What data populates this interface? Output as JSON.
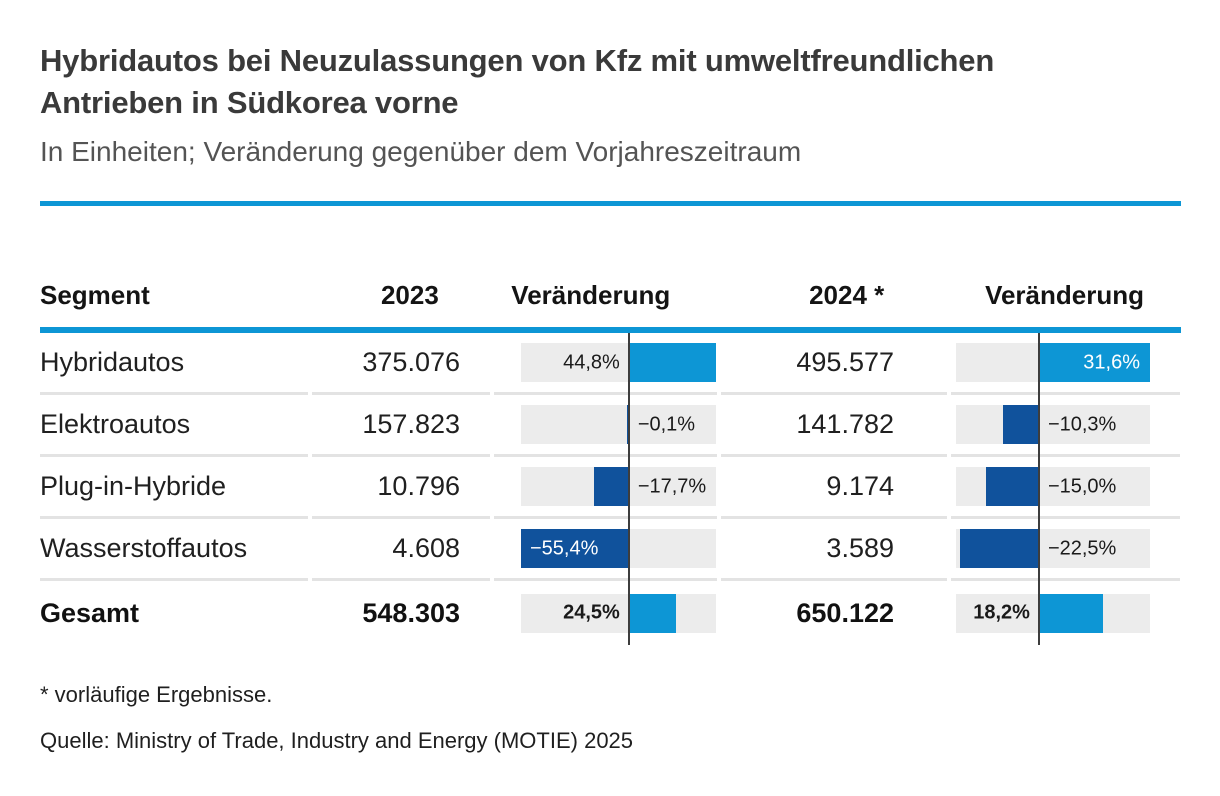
{
  "title_lines": [
    "Hybridautos bei Neuzulassungen von Kfz mit umweltfreundlichen",
    "Antrieben in Südkorea vorne"
  ],
  "subtitle": "In Einheiten; Veränderung gegenüber dem Vorjahreszeitraum",
  "footnote": "* vorläufige Ergebnisse.",
  "source": "Quelle: Ministry of Trade, Industry and Energy (MOTIE) 2025",
  "colors": {
    "accent_blue": "#0d96d5",
    "positive_bar": "#0d96d5",
    "negative_bar": "#10529c",
    "range_block_gray": "#ececec",
    "axis_line": "#3d3d3d",
    "title_text": "#3a3a3a",
    "subtitle_text": "#545454"
  },
  "table": {
    "columns": [
      "Segment",
      "2023",
      "Veränderung",
      "2024 *",
      "Veränderung"
    ],
    "rows": [
      {
        "segment": "Hybridautos",
        "v2023": "375.076",
        "c2023": {
          "label": "44,8%",
          "value": 44.8,
          "label_inside": false
        },
        "v2024": "495.577",
        "c2024": {
          "label": "31,6%",
          "value": 31.6,
          "label_inside": true
        },
        "bold": false
      },
      {
        "segment": "Elektroautos",
        "v2023": "157.823",
        "c2023": {
          "label": "−0,1%",
          "value": -0.1,
          "label_inside": false
        },
        "v2024": "141.782",
        "c2024": {
          "label": "−10,3%",
          "value": -10.3,
          "label_inside": false
        },
        "bold": false
      },
      {
        "segment": "Plug-in-Hybride",
        "v2023": "10.796",
        "c2023": {
          "label": "−17,7%",
          "value": -17.7,
          "label_inside": false
        },
        "v2024": "9.174",
        "c2024": {
          "label": "−15,0%",
          "value": -15.0,
          "label_inside": false
        },
        "bold": false
      },
      {
        "segment": "Wasserstoffautos",
        "v2023": "4.608",
        "c2023": {
          "label": "−55,4%",
          "value": -55.4,
          "label_inside": true
        },
        "v2024": "3.589",
        "c2024": {
          "label": "−22,5%",
          "value": -22.5,
          "label_inside": false
        },
        "bold": false
      },
      {
        "segment": "Gesamt",
        "v2023": "548.303",
        "c2023": {
          "label": "24,5%",
          "value": 24.5,
          "label_inside": false
        },
        "v2024": "650.122",
        "c2024": {
          "label": "18,2%",
          "value": 18.2,
          "label_inside": false
        },
        "bold": true
      }
    ]
  },
  "chart_data": {
    "type": "table",
    "title": "Hybridautos bei Neuzulassungen von Kfz mit umweltfreundlichen Antrieben in Südkorea vorne",
    "subtitle": "In Einheiten; Veränderung gegenüber dem Vorjahreszeitraum",
    "columns": [
      "Segment",
      "2023",
      "Veränderung",
      "2024 *",
      "Veränderung"
    ],
    "categories": [
      "Hybridautos",
      "Elektroautos",
      "Plug-in-Hybride",
      "Wasserstoffautos",
      "Gesamt"
    ],
    "series": [
      {
        "name": "2023",
        "values": [
          375076,
          157823,
          10796,
          4608,
          548303
        ]
      },
      {
        "name": "Veränderung 2023 (%)",
        "values": [
          44.8,
          -0.1,
          -17.7,
          -55.4,
          24.5
        ]
      },
      {
        "name": "2024 *",
        "values": [
          495577,
          141782,
          9174,
          3589,
          650122
        ]
      },
      {
        "name": "Veränderung 2024 (%)",
        "values": [
          31.6,
          -10.3,
          -15.0,
          -22.5,
          18.2
        ]
      }
    ],
    "bar_axis_ranges": {
      "change_2023": [
        -55.4,
        44.8
      ],
      "change_2024": [
        -23.6,
        31.6
      ]
    },
    "grid": "off",
    "legend": "none"
  }
}
